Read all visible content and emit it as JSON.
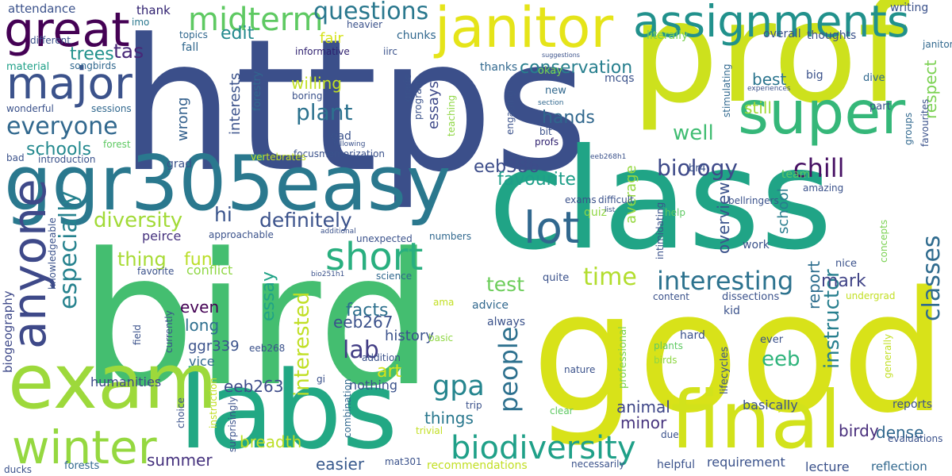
{
  "words": [
    {
      "text": "https",
      "color": "#3b4f8a"
    },
    {
      "text": "bird",
      "color": "#44be70"
    },
    {
      "text": "good",
      "color": "#d8e219"
    },
    {
      "text": "class",
      "color": "#20a486"
    },
    {
      "text": "prof",
      "color": "#cde11d"
    },
    {
      "text": "labs",
      "color": "#22a884"
    },
    {
      "text": "exam",
      "color": "#9dd93b"
    },
    {
      "text": "ggr305easy",
      "color": "#2a788e"
    },
    {
      "text": "final",
      "color": "#d2e21b"
    },
    {
      "text": "janitor",
      "color": "#e5e419"
    },
    {
      "text": "super",
      "color": "#35b779"
    },
    {
      "text": "assignments",
      "color": "#21918c"
    },
    {
      "text": "major",
      "color": "#3b528b"
    },
    {
      "text": "great",
      "color": "#440154"
    },
    {
      "text": "anyone",
      "color": "#3e4989"
    },
    {
      "text": "winter",
      "color": "#95d840"
    },
    {
      "text": "lot",
      "color": "#31688e"
    },
    {
      "text": "short",
      "color": "#29af7f"
    },
    {
      "text": "midterm",
      "color": "#5ec962"
    },
    {
      "text": "questions",
      "color": "#2a788e"
    },
    {
      "text": "biodiversity",
      "color": "#1fa088"
    },
    {
      "text": "interesting",
      "color": "#2c728e"
    },
    {
      "text": "everyone",
      "color": "#31688e"
    },
    {
      "text": "gpa",
      "color": "#25858e"
    },
    {
      "text": "people",
      "color": "#2d708e"
    },
    {
      "text": "especially",
      "color": "#26828e"
    },
    {
      "text": "classes",
      "color": "#2f6b8e"
    },
    {
      "text": "chill",
      "color": "#471164"
    },
    {
      "text": "biology",
      "color": "#3e4a89"
    },
    {
      "text": "time",
      "color": "#b2dd2d"
    },
    {
      "text": "lab",
      "color": "#433e85"
    },
    {
      "text": "definitely",
      "color": "#3b528b"
    },
    {
      "text": "diversity",
      "color": "#a2da37"
    },
    {
      "text": "eeb",
      "color": "#2fb47c"
    },
    {
      "text": "trees",
      "color": "#21918c"
    },
    {
      "text": "tas",
      "color": "#482878"
    },
    {
      "text": "edit",
      "color": "#23898e"
    },
    {
      "text": "hi",
      "color": "#3a548c"
    },
    {
      "text": "thing",
      "color": "#a8db34"
    },
    {
      "text": "fun",
      "color": "#bade28"
    },
    {
      "text": "test",
      "color": "#6ccd5a"
    },
    {
      "text": "facts",
      "color": "#2d708e"
    },
    {
      "text": "hands",
      "color": "#30678d"
    },
    {
      "text": "plant",
      "color": "#2c728e"
    },
    {
      "text": "schools",
      "color": "#23898e"
    },
    {
      "text": "well",
      "color": "#40bd72"
    },
    {
      "text": "conservation",
      "color": "#277f8e"
    },
    {
      "text": "eeb386",
      "color": "#3d4d8a"
    },
    {
      "text": "favourite",
      "color": "#1f9e89"
    },
    {
      "text": "instructor",
      "color": "#277f8e"
    },
    {
      "text": "mark",
      "color": "#414487"
    },
    {
      "text": "essay",
      "color": "#20a386"
    },
    {
      "text": "interested",
      "color": "#c0df25"
    },
    {
      "text": "report",
      "color": "#2e6e8e"
    },
    {
      "text": "overview",
      "color": "#3b528b"
    },
    {
      "text": "animal",
      "color": "#3f4788"
    },
    {
      "text": "birdy",
      "color": "#472d7b"
    },
    {
      "text": "dense",
      "color": "#31688e"
    },
    {
      "text": "breadth",
      "color": "#bddf26"
    },
    {
      "text": "easier",
      "color": "#38598c"
    },
    {
      "text": "summer",
      "color": "#46327e"
    },
    {
      "text": "eeb263",
      "color": "#3e4c8a"
    },
    {
      "text": "eeb267",
      "color": "#3b518b"
    },
    {
      "text": "long",
      "color": "#2e6f8e"
    },
    {
      "text": "even",
      "color": "#440154"
    },
    {
      "text": "things",
      "color": "#2a788e"
    },
    {
      "text": "art",
      "color": "#d5e21a"
    },
    {
      "text": "history",
      "color": "#3b528b"
    },
    {
      "text": "minor",
      "color": "#46337e"
    },
    {
      "text": "school",
      "color": "#287d8e"
    },
    {
      "text": "still",
      "color": "#a2da37"
    },
    {
      "text": "best",
      "color": "#2b758e"
    },
    {
      "text": "wrong",
      "color": "#34618d"
    },
    {
      "text": "interests",
      "color": "#3b528b"
    },
    {
      "text": "essays",
      "color": "#3e4989"
    },
    {
      "text": "willing",
      "color": "#c2df23"
    },
    {
      "text": "fair",
      "color": "#d5e21a"
    },
    {
      "text": "respect",
      "color": "#7ad151"
    },
    {
      "text": "average",
      "color": "#95d840"
    },
    {
      "text": "ggr339",
      "color": "#3b528b"
    },
    {
      "text": "humanities",
      "color": "#3e4989"
    },
    {
      "text": "vice",
      "color": "#31688e"
    },
    {
      "text": "nothing",
      "color": "#3b528b"
    },
    {
      "text": "peirce",
      "color": "#46327e"
    },
    {
      "text": "conflict",
      "color": "#8fd744"
    },
    {
      "text": "biogeography",
      "color": "#3e4989"
    },
    {
      "text": "knowledgeable",
      "color": "#3b528b"
    },
    {
      "text": "favorite",
      "color": "#3b528b"
    },
    {
      "text": "approachable",
      "color": "#3b528b"
    },
    {
      "text": "attendance",
      "color": "#3b528b"
    },
    {
      "text": "thank",
      "color": "#2d1e6e"
    },
    {
      "text": "imo",
      "color": "#2a788e"
    },
    {
      "text": "different",
      "color": "#3b528b"
    },
    {
      "text": "material",
      "color": "#1fa088"
    },
    {
      "text": "songbirds",
      "color": "#31688e"
    },
    {
      "text": "wonderful",
      "color": "#3b528b"
    },
    {
      "text": "sessions",
      "color": "#31688e"
    },
    {
      "text": "bad",
      "color": "#3b528b"
    },
    {
      "text": "introduction",
      "color": "#3b528b"
    },
    {
      "text": "topics",
      "color": "#31688e"
    },
    {
      "text": "heavier",
      "color": "#3b528b"
    },
    {
      "text": "chunks",
      "color": "#31688e"
    },
    {
      "text": "informative",
      "color": "#2d1e6e"
    },
    {
      "text": "iirc",
      "color": "#3b528b"
    },
    {
      "text": "thanks",
      "color": "#31688e"
    },
    {
      "text": "suggestions",
      "color": "#3b528b"
    },
    {
      "text": "okay",
      "color": "#7ad151"
    },
    {
      "text": "new",
      "color": "#31688e"
    },
    {
      "text": "engaging",
      "color": "#3b528b"
    },
    {
      "text": "section",
      "color": "#31688e"
    },
    {
      "text": "bit",
      "color": "#3b528b"
    },
    {
      "text": "profs",
      "color": "#2d1e6e"
    },
    {
      "text": "grade",
      "color": "#3b528b"
    },
    {
      "text": "program",
      "color": "#3b528b"
    },
    {
      "text": "teaching",
      "color": "#8fd744"
    },
    {
      "text": "load",
      "color": "#3b528b"
    },
    {
      "text": "focusmemorization",
      "color": "#3b528b"
    },
    {
      "text": "following",
      "color": "#3b528b"
    },
    {
      "text": "vertebrates",
      "color": "#c2df23"
    },
    {
      "text": "forestry",
      "color": "#31688e"
    },
    {
      "text": "grad",
      "color": "#3b528b"
    },
    {
      "text": "fall",
      "color": "#31688e"
    },
    {
      "text": "boring",
      "color": "#3b528b"
    },
    {
      "text": "forest",
      "color": "#5ec962"
    },
    {
      "text": "mcqs",
      "color": "#3b528b"
    },
    {
      "text": "writing",
      "color": "#3b528b"
    },
    {
      "text": "janitors",
      "color": "#31688e"
    },
    {
      "text": "literally",
      "color": "#7ad151"
    },
    {
      "text": "overall",
      "color": "#3b528b"
    },
    {
      "text": "thoughts",
      "color": "#3b528b"
    },
    {
      "text": "big",
      "color": "#3b528b"
    },
    {
      "text": "dive",
      "color": "#31688e"
    },
    {
      "text": "experiences",
      "color": "#3b528b"
    },
    {
      "text": "stimulating",
      "color": "#31688e"
    },
    {
      "text": "part",
      "color": "#3b528b"
    },
    {
      "text": "favourites",
      "color": "#3b528b"
    },
    {
      "text": "groups",
      "color": "#31688e"
    },
    {
      "text": "team",
      "color": "#5ec962"
    },
    {
      "text": "bellringers",
      "color": "#3b528b"
    },
    {
      "text": "amazing",
      "color": "#3b528b"
    },
    {
      "text": "eeb268h1",
      "color": "#3b528b"
    },
    {
      "text": "br4",
      "color": "#3b528b"
    },
    {
      "text": "quiz",
      "color": "#8fd744"
    },
    {
      "text": "exams",
      "color": "#3b528b"
    },
    {
      "text": "difficult",
      "color": "#3b528b"
    },
    {
      "text": "list",
      "color": "#3b528b"
    },
    {
      "text": "help",
      "color": "#5ec962"
    },
    {
      "text": "intimidating",
      "color": "#3b528b"
    },
    {
      "text": "additional",
      "color": "#3b528b"
    },
    {
      "text": "unexpected",
      "color": "#3b528b"
    },
    {
      "text": "numbers",
      "color": "#31688e"
    },
    {
      "text": "work",
      "color": "#3b528b"
    },
    {
      "text": "nice",
      "color": "#3b528b"
    },
    {
      "text": "concepts",
      "color": "#7ad151"
    },
    {
      "text": "bio251h1",
      "color": "#3b528b"
    },
    {
      "text": "science",
      "color": "#31688e"
    },
    {
      "text": "quite",
      "color": "#3b528b"
    },
    {
      "text": "content",
      "color": "#3b528b"
    },
    {
      "text": "dissections",
      "color": "#3b528b"
    },
    {
      "text": "undergrad",
      "color": "#c2df23"
    },
    {
      "text": "advice",
      "color": "#31688e"
    },
    {
      "text": "ama",
      "color": "#c2df23"
    },
    {
      "text": "kid",
      "color": "#3b528b"
    },
    {
      "text": "always",
      "color": "#3b528b"
    },
    {
      "text": "professional",
      "color": "#7ad151"
    },
    {
      "text": "lifecycles",
      "color": "#3b528b"
    },
    {
      "text": "hard",
      "color": "#3b528b"
    },
    {
      "text": "plants",
      "color": "#5ec962"
    },
    {
      "text": "birds",
      "color": "#8fd744"
    },
    {
      "text": "ever",
      "color": "#3b528b"
    },
    {
      "text": "generally",
      "color": "#c2df23"
    },
    {
      "text": "currently",
      "color": "#3b528b"
    },
    {
      "text": "field",
      "color": "#3b528b"
    },
    {
      "text": "eeb268",
      "color": "#3b528b"
    },
    {
      "text": "addition",
      "color": "#3b528b"
    },
    {
      "text": "basic",
      "color": "#8fd744"
    },
    {
      "text": "gi",
      "color": "#3b528b"
    },
    {
      "text": "choice",
      "color": "#3b528b"
    },
    {
      "text": "instruction",
      "color": "#c2df23"
    },
    {
      "text": "surprisingly",
      "color": "#3b528b"
    },
    {
      "text": "combination",
      "color": "#31688e"
    },
    {
      "text": "trip",
      "color": "#3b528b"
    },
    {
      "text": "trivial",
      "color": "#c2df23"
    },
    {
      "text": "clear",
      "color": "#5ec962"
    },
    {
      "text": "nature",
      "color": "#3b528b"
    },
    {
      "text": "due",
      "color": "#3b528b"
    },
    {
      "text": "basically",
      "color": "#3b528b"
    },
    {
      "text": "reports",
      "color": "#3b528b"
    },
    {
      "text": "evaluations",
      "color": "#3b528b"
    },
    {
      "text": "requirement",
      "color": "#3b528b"
    },
    {
      "text": "lecture",
      "color": "#3b528b"
    },
    {
      "text": "reflection",
      "color": "#31688e"
    },
    {
      "text": "mat301",
      "color": "#3b528b"
    },
    {
      "text": "recommendations",
      "color": "#c2df23"
    },
    {
      "text": "helpful",
      "color": "#3b528b"
    },
    {
      "text": "necessarily",
      "color": "#3b528b"
    },
    {
      "text": "ducks",
      "color": "#3b528b"
    },
    {
      "text": "forests",
      "color": "#31688e"
    }
  ]
}
